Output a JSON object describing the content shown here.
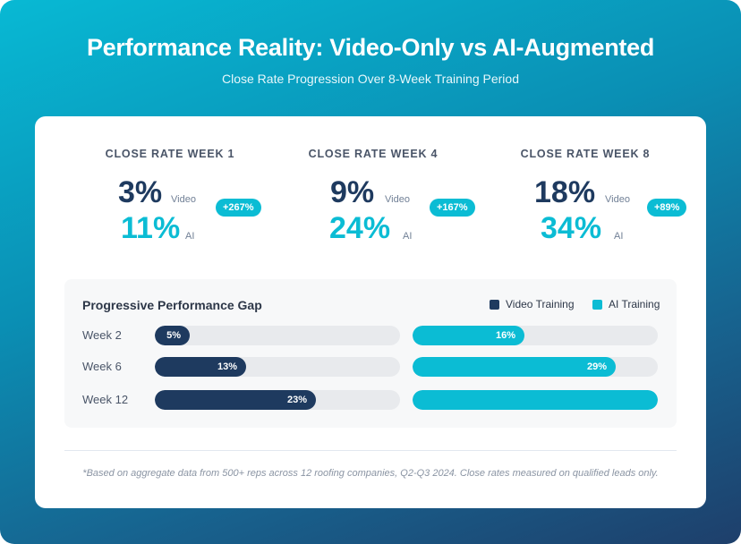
{
  "header": {
    "title": "Performance Reality: Video-Only vs AI-Augmented",
    "subtitle": "Close Rate Progression Over 8-Week Training Period"
  },
  "stats": [
    {
      "label": "CLOSE RATE WEEK 1",
      "video_value": "3%",
      "video_label": "Video",
      "ai_value": "11%",
      "ai_label": "AI",
      "delta": "+267%"
    },
    {
      "label": "CLOSE RATE WEEK 4",
      "video_value": "9%",
      "video_label": "Video",
      "ai_value": "24%",
      "ai_label": "AI",
      "delta": "+167%"
    },
    {
      "label": "CLOSE RATE WEEK 8",
      "video_value": "18%",
      "video_label": "Video",
      "ai_value": "34%",
      "ai_label": "AI",
      "delta": "+89%"
    }
  ],
  "chart_data": {
    "type": "bar",
    "title": "Progressive Performance Gap",
    "categories": [
      "Week 2",
      "Week 6",
      "Week 12"
    ],
    "series": [
      {
        "name": "Video Training",
        "values": [
          5,
          13,
          23
        ],
        "labels": [
          "5%",
          "13%",
          "23%"
        ],
        "color": "#1e3a5f"
      },
      {
        "name": "AI Training",
        "values": [
          16,
          29,
          35
        ],
        "labels": [
          "16%",
          "29%",
          ""
        ],
        "color": "#0bbcd4"
      }
    ],
    "ylim": [
      0,
      35
    ],
    "legend": "top-right",
    "grid": false
  },
  "footnote": "*Based on aggregate data from 500+ reps across 12 roofing companies, Q2-Q3 2024. Close rates measured on qualified leads only.",
  "colors": {
    "video": "#1e3a5f",
    "ai": "#0bbcd4",
    "track": "#e8eaed"
  }
}
